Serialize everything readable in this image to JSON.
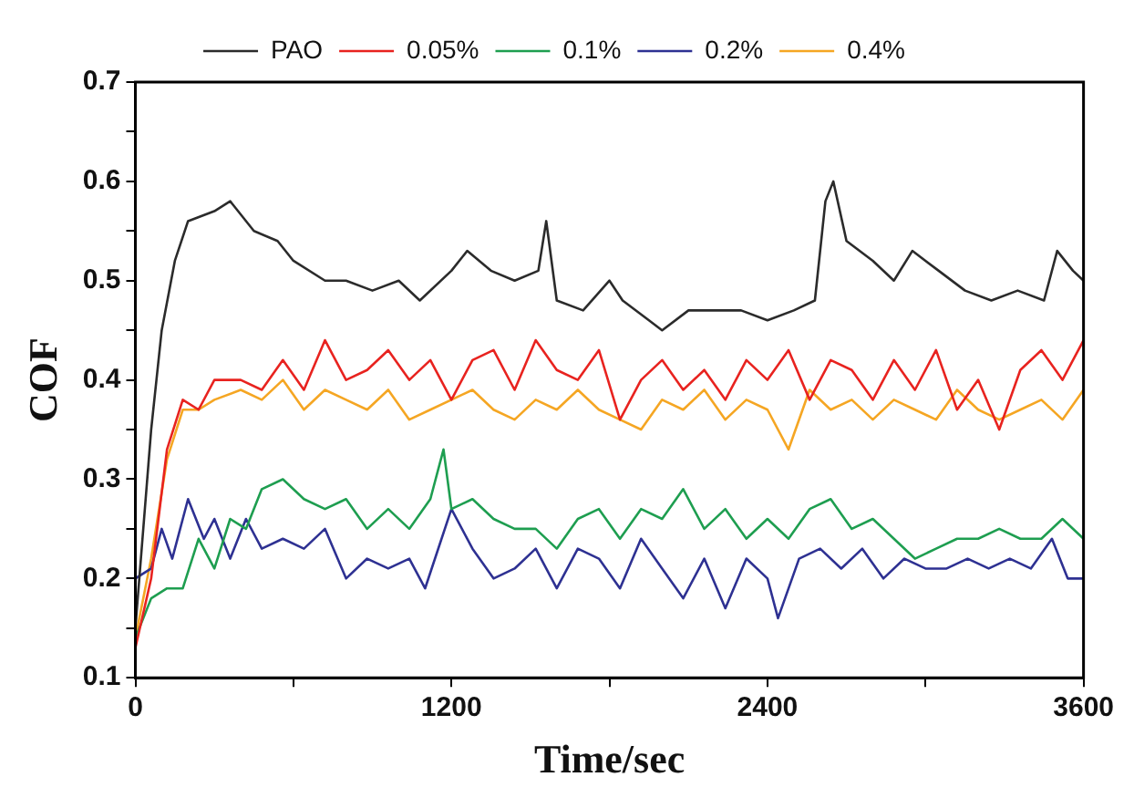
{
  "chart_data": {
    "type": "line",
    "xlabel": "Time/sec",
    "ylabel": "COF",
    "xlim": [
      0,
      3600
    ],
    "ylim": [
      0.1,
      0.7
    ],
    "xticks": [
      0,
      {
        "value": 600,
        "label": null
      },
      1200,
      {
        "value": 1800,
        "label": null
      },
      2400,
      {
        "value": 3000,
        "label": null
      },
      3600
    ],
    "yticks": [
      0.1,
      {
        "value": 0.15,
        "label": null
      },
      0.2,
      {
        "value": 0.25,
        "label": null
      },
      0.3,
      {
        "value": 0.35,
        "label": null
      },
      0.4,
      {
        "value": 0.45,
        "label": null
      },
      0.5,
      {
        "value": 0.55,
        "label": null
      },
      0.6,
      {
        "value": 0.65,
        "label": null
      },
      0.7
    ],
    "grid": false,
    "legend": "top",
    "marker": "none",
    "line_style": "solid",
    "series": [
      {
        "name": "PAO",
        "color": "#2b2b2b",
        "x": [
          0,
          60,
          100,
          150,
          200,
          300,
          360,
          450,
          540,
          600,
          720,
          800,
          900,
          1000,
          1080,
          1200,
          1260,
          1350,
          1440,
          1530,
          1560,
          1600,
          1700,
          1800,
          1850,
          1950,
          2000,
          2100,
          2200,
          2300,
          2400,
          2500,
          2580,
          2620,
          2650,
          2700,
          2800,
          2880,
          2950,
          3050,
          3150,
          3250,
          3350,
          3450,
          3500,
          3560,
          3600
        ],
        "values": [
          0.15,
          0.35,
          0.45,
          0.52,
          0.56,
          0.57,
          0.58,
          0.55,
          0.54,
          0.52,
          0.5,
          0.5,
          0.49,
          0.5,
          0.48,
          0.51,
          0.53,
          0.51,
          0.5,
          0.51,
          0.56,
          0.48,
          0.47,
          0.5,
          0.48,
          0.46,
          0.45,
          0.47,
          0.47,
          0.47,
          0.46,
          0.47,
          0.48,
          0.58,
          0.6,
          0.54,
          0.52,
          0.5,
          0.53,
          0.51,
          0.49,
          0.48,
          0.49,
          0.48,
          0.53,
          0.51,
          0.5
        ]
      },
      {
        "name": "0.05%",
        "color": "#e8231f",
        "x": [
          0,
          60,
          120,
          180,
          240,
          300,
          400,
          480,
          560,
          640,
          720,
          800,
          880,
          960,
          1040,
          1120,
          1200,
          1280,
          1360,
          1440,
          1520,
          1600,
          1680,
          1760,
          1840,
          1920,
          2000,
          2080,
          2160,
          2240,
          2320,
          2400,
          2480,
          2560,
          2640,
          2720,
          2800,
          2880,
          2960,
          3040,
          3120,
          3200,
          3280,
          3360,
          3440,
          3520,
          3600
        ],
        "values": [
          0.13,
          0.2,
          0.33,
          0.38,
          0.37,
          0.4,
          0.4,
          0.39,
          0.42,
          0.39,
          0.44,
          0.4,
          0.41,
          0.43,
          0.4,
          0.42,
          0.38,
          0.42,
          0.43,
          0.39,
          0.44,
          0.41,
          0.4,
          0.43,
          0.36,
          0.4,
          0.42,
          0.39,
          0.41,
          0.38,
          0.42,
          0.4,
          0.43,
          0.38,
          0.42,
          0.41,
          0.38,
          0.42,
          0.39,
          0.43,
          0.37,
          0.4,
          0.35,
          0.41,
          0.43,
          0.4,
          0.44
        ]
      },
      {
        "name": "0.1%",
        "color": "#1e9e50",
        "x": [
          0,
          60,
          120,
          180,
          240,
          300,
          360,
          420,
          480,
          560,
          640,
          720,
          800,
          880,
          960,
          1040,
          1120,
          1170,
          1200,
          1280,
          1360,
          1440,
          1520,
          1600,
          1680,
          1760,
          1840,
          1920,
          2000,
          2080,
          2160,
          2240,
          2320,
          2400,
          2480,
          2560,
          2640,
          2720,
          2800,
          2880,
          2960,
          3040,
          3120,
          3200,
          3280,
          3360,
          3440,
          3520,
          3600
        ],
        "values": [
          0.14,
          0.18,
          0.19,
          0.19,
          0.24,
          0.21,
          0.26,
          0.25,
          0.29,
          0.3,
          0.28,
          0.27,
          0.28,
          0.25,
          0.27,
          0.25,
          0.28,
          0.33,
          0.27,
          0.28,
          0.26,
          0.25,
          0.25,
          0.23,
          0.26,
          0.27,
          0.24,
          0.27,
          0.26,
          0.29,
          0.25,
          0.27,
          0.24,
          0.26,
          0.24,
          0.27,
          0.28,
          0.25,
          0.26,
          0.24,
          0.22,
          0.23,
          0.24,
          0.24,
          0.25,
          0.24,
          0.24,
          0.26,
          0.24
        ]
      },
      {
        "name": "0.2%",
        "color": "#2e3192",
        "x": [
          0,
          60,
          100,
          140,
          200,
          260,
          300,
          360,
          420,
          480,
          560,
          640,
          720,
          800,
          880,
          960,
          1040,
          1100,
          1200,
          1280,
          1360,
          1440,
          1520,
          1600,
          1680,
          1760,
          1840,
          1920,
          2000,
          2080,
          2160,
          2240,
          2320,
          2400,
          2440,
          2520,
          2600,
          2680,
          2760,
          2840,
          2920,
          3000,
          3080,
          3160,
          3240,
          3320,
          3400,
          3480,
          3540,
          3600
        ],
        "values": [
          0.2,
          0.21,
          0.25,
          0.22,
          0.28,
          0.24,
          0.26,
          0.22,
          0.26,
          0.23,
          0.24,
          0.23,
          0.25,
          0.2,
          0.22,
          0.21,
          0.22,
          0.19,
          0.27,
          0.23,
          0.2,
          0.21,
          0.23,
          0.19,
          0.23,
          0.22,
          0.19,
          0.24,
          0.21,
          0.18,
          0.22,
          0.17,
          0.22,
          0.2,
          0.16,
          0.22,
          0.23,
          0.21,
          0.23,
          0.2,
          0.22,
          0.21,
          0.21,
          0.22,
          0.21,
          0.22,
          0.21,
          0.24,
          0.2,
          0.2
        ]
      },
      {
        "name": "0.4%",
        "color": "#f5a623",
        "x": [
          0,
          60,
          120,
          180,
          240,
          300,
          400,
          480,
          560,
          640,
          720,
          800,
          880,
          960,
          1040,
          1120,
          1200,
          1280,
          1360,
          1440,
          1520,
          1600,
          1680,
          1760,
          1840,
          1920,
          2000,
          2080,
          2160,
          2240,
          2320,
          2400,
          2480,
          2560,
          2640,
          2720,
          2800,
          2880,
          2960,
          3040,
          3120,
          3200,
          3280,
          3360,
          3440,
          3520,
          3600
        ],
        "values": [
          0.14,
          0.22,
          0.32,
          0.37,
          0.37,
          0.38,
          0.39,
          0.38,
          0.4,
          0.37,
          0.39,
          0.38,
          0.37,
          0.39,
          0.36,
          0.37,
          0.38,
          0.39,
          0.37,
          0.36,
          0.38,
          0.37,
          0.39,
          0.37,
          0.36,
          0.35,
          0.38,
          0.37,
          0.39,
          0.36,
          0.38,
          0.37,
          0.33,
          0.39,
          0.37,
          0.38,
          0.36,
          0.38,
          0.37,
          0.36,
          0.39,
          0.37,
          0.36,
          0.37,
          0.38,
          0.36,
          0.39
        ]
      }
    ]
  }
}
